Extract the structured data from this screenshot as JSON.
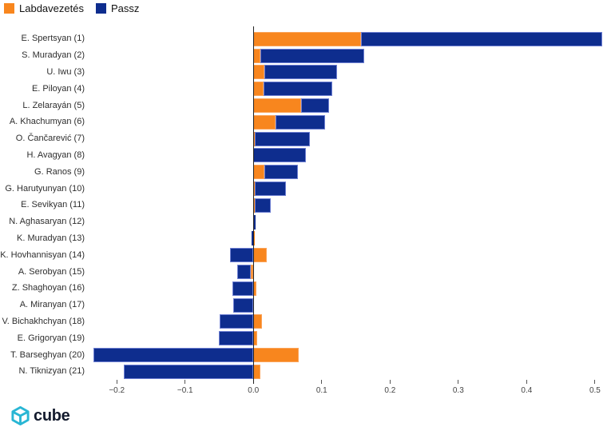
{
  "legend": {
    "items": [
      {
        "label": "Labdavezetés",
        "color": "#F8861E"
      },
      {
        "label": "Passz",
        "color": "#0E2D8E"
      }
    ]
  },
  "logo": {
    "text": "cube",
    "icon": "cube-icon",
    "icon_color": "#29B6D4"
  },
  "chart_data": {
    "type": "bar",
    "orientation": "horizontal",
    "stacked": true,
    "legend_position": "top-left",
    "grid": false,
    "zero_line": true,
    "categories": [
      "E. Spertsyan (1)",
      "S. Muradyan (2)",
      "U. Iwu (3)",
      "E. Piloyan (4)",
      "L. Zelarayán (5)",
      "A. Khachumyan (6)",
      "O. Čančarević (7)",
      "H. Avagyan (8)",
      "G. Ranos (9)",
      "G. Harutyunyan (10)",
      "E. Sevikyan (11)",
      "N. Aghasaryan (12)",
      "K. Muradyan (13)",
      "K. Hovhannisyan (14)",
      "A. Serobyan (15)",
      "Z. Shaghoyan (16)",
      "A. Miranyan (17)",
      "V. Bichakhchyan (18)",
      "E. Grigoryan (19)",
      "T. Barseghyan (20)",
      "N. Tiknizyan (21)"
    ],
    "series": [
      {
        "name": "Labdavezetés",
        "color": "#F8861E",
        "border": "#FBA45A",
        "values": [
          0.158,
          0.01,
          0.016,
          0.015,
          0.07,
          0.033,
          0.002,
          0.0,
          0.016,
          0.002,
          0.002,
          0.0,
          0.002,
          0.019,
          -0.004,
          0.004,
          0.0,
          0.013,
          0.006,
          0.066,
          0.01
        ]
      },
      {
        "name": "Passz",
        "color": "#0E2D8E",
        "border": "#6E7FD2",
        "values": [
          0.353,
          0.152,
          0.106,
          0.101,
          0.041,
          0.072,
          0.081,
          0.077,
          0.049,
          0.046,
          0.023,
          0.003,
          -0.003,
          -0.034,
          -0.02,
          -0.031,
          -0.029,
          -0.049,
          -0.051,
          -0.234,
          -0.19
        ]
      }
    ],
    "xlim": [
      -0.24,
      0.52
    ],
    "xtick_values": [
      -0.2,
      -0.1,
      0.0,
      0.1,
      0.2,
      0.3,
      0.4,
      0.5
    ],
    "xtick_labels": [
      "−0.2",
      "−0.1",
      "0.0",
      "0.1",
      "0.2",
      "0.3",
      "0.4",
      "0.5"
    ],
    "xlabel": "",
    "ylabel": "",
    "title": ""
  }
}
